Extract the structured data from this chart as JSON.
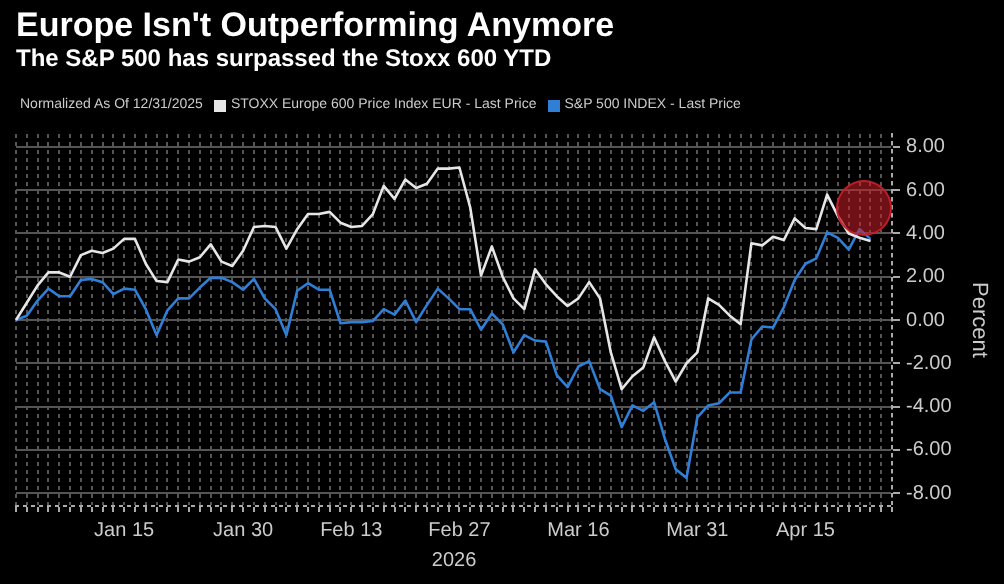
{
  "chart_data": {
    "type": "line",
    "title": "Europe Isn't Outperforming Anymore",
    "subtitle": "The S&P 500 has surpassed the Stoxx 600 YTD",
    "legend_title": "Normalized As Of 12/31/2025",
    "xlabel": "2026",
    "ylabel": "Percent",
    "categories": [
      null,
      null,
      null,
      null,
      null,
      null,
      null,
      null,
      null,
      null,
      "Jan 15",
      null,
      null,
      null,
      null,
      null,
      null,
      null,
      null,
      null,
      null,
      "Jan 30",
      null,
      null,
      null,
      null,
      null,
      null,
      null,
      null,
      null,
      "Feb 13",
      null,
      null,
      null,
      null,
      null,
      null,
      null,
      null,
      null,
      "Feb 27",
      null,
      null,
      null,
      null,
      null,
      null,
      null,
      null,
      null,
      null,
      "Mar 16",
      null,
      null,
      null,
      null,
      null,
      null,
      null,
      null,
      null,
      null,
      "Mar 31",
      null,
      null,
      null,
      null,
      null,
      null,
      null,
      null,
      null,
      "Apr 15",
      null,
      null,
      null,
      null,
      null,
      null,
      null,
      null
    ],
    "series": [
      {
        "name": "STOXX Europe 600 Price Index EUR - Last Price",
        "color": "#e6e6e6",
        "values": [
          0,
          0.8,
          1.6,
          2.2,
          2.2,
          2.0,
          3.0,
          3.2,
          3.1,
          3.3,
          3.75,
          3.75,
          2.6,
          1.8,
          1.75,
          2.8,
          2.7,
          2.9,
          3.5,
          2.7,
          2.5,
          3.2,
          4.3,
          4.35,
          4.3,
          3.3,
          4.2,
          4.9,
          4.9,
          5.0,
          4.5,
          4.3,
          4.35,
          4.9,
          6.2,
          5.6,
          6.5,
          6.1,
          6.3,
          7.0,
          7.0,
          7.05,
          5.2,
          2.05,
          3.4,
          2.0,
          1.0,
          0.5,
          2.35,
          1.65,
          1.1,
          0.65,
          1.0,
          1.75,
          1.0,
          -1.5,
          -3.2,
          -2.6,
          -2.2,
          -0.8,
          -1.9,
          -2.85,
          -2.0,
          -1.5,
          1.0,
          0.7,
          0.2,
          -0.2,
          3.55,
          3.45,
          3.85,
          3.7,
          4.7,
          4.25,
          4.2,
          5.8,
          4.8,
          4.0,
          3.8,
          3.65,
          null,
          null
        ]
      },
      {
        "name": "S&P 500 INDEX - Last Price",
        "color": "#2f7fd6",
        "values": [
          0,
          0.2,
          0.9,
          1.45,
          1.1,
          1.1,
          1.85,
          1.9,
          1.75,
          1.2,
          1.45,
          1.4,
          0.5,
          -0.7,
          0.45,
          1.0,
          1.0,
          1.5,
          1.95,
          1.95,
          1.75,
          1.4,
          1.9,
          1.0,
          0.5,
          -0.7,
          1.35,
          1.7,
          1.4,
          1.4,
          -0.15,
          -0.1,
          -0.1,
          -0.05,
          0.5,
          0.25,
          0.9,
          -0.1,
          0.7,
          1.45,
          1.0,
          0.5,
          0.5,
          -0.45,
          0.3,
          -0.2,
          -1.5,
          -0.7,
          -0.95,
          -1.0,
          -2.55,
          -3.1,
          -2.15,
          -1.9,
          -3.2,
          -3.5,
          -4.95,
          -3.95,
          -4.2,
          -3.8,
          -5.5,
          -6.9,
          -7.3,
          -4.5,
          -3.95,
          -3.85,
          -3.35,
          -3.35,
          -0.9,
          -0.3,
          -0.35,
          0.6,
          1.85,
          2.6,
          2.85,
          4.05,
          3.8,
          3.25,
          4.2,
          3.75,
          null,
          null
        ]
      }
    ],
    "ylim": [
      -8.6,
      8.6
    ],
    "yticks": [
      {
        "value": -8,
        "label": "-8.00"
      },
      {
        "value": -6,
        "label": "-6.00"
      },
      {
        "value": -4,
        "label": "-4.00"
      },
      {
        "value": -2,
        "label": "-2.00"
      },
      {
        "value": 0,
        "label": "0.00"
      },
      {
        "value": 2,
        "label": "2.00"
      },
      {
        "value": 4,
        "label": "4.00"
      },
      {
        "value": 6,
        "label": "6.00"
      },
      {
        "value": 8,
        "label": "8.00"
      }
    ],
    "grid": true,
    "legend": "top left",
    "marker": "none",
    "line_style": "solid"
  }
}
